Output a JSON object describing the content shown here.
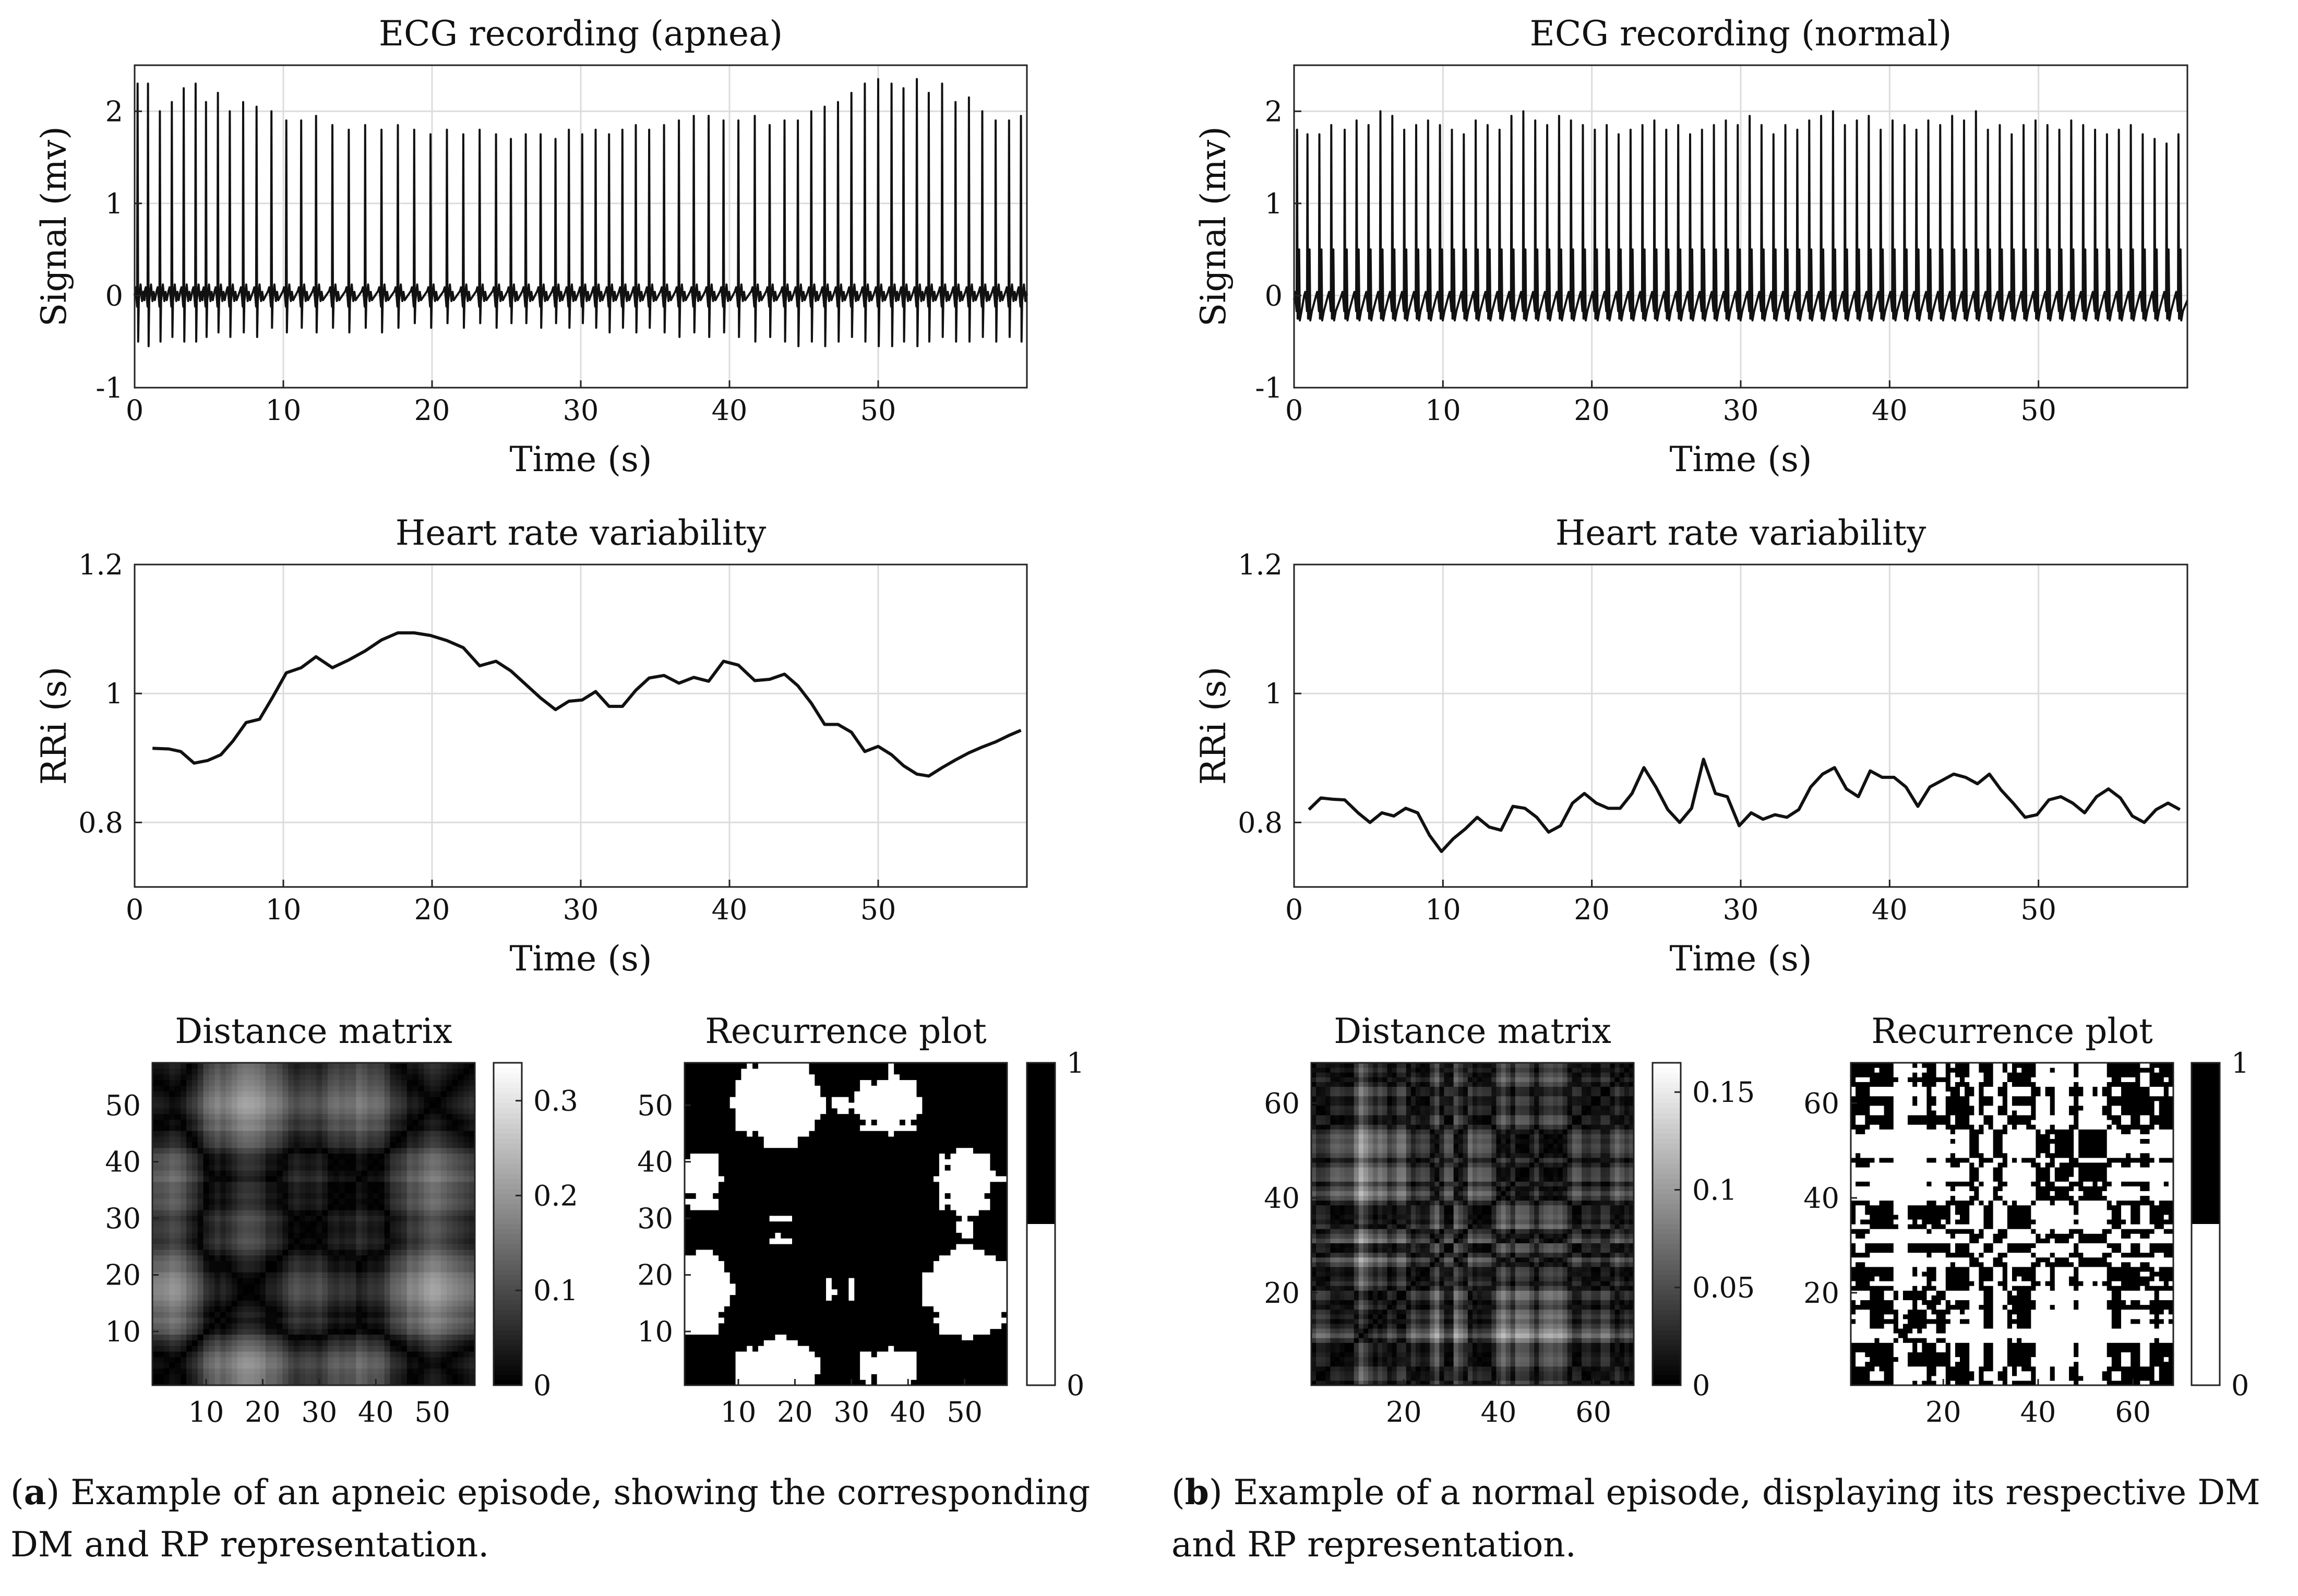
{
  "panel_a": {
    "label": "a",
    "caption": "Example of an apneic episode, showing the corresponding DM and RP representation."
  },
  "panel_b": {
    "label": "b",
    "caption": "Example of a normal episode, displaying its respective DM and RP representation."
  },
  "chart_data": [
    {
      "id": "ecg_apnea",
      "type": "line",
      "title": "ECG recording (apnea)",
      "xlabel": "Time (s)",
      "ylabel": "Signal (mv)",
      "xlim": [
        0,
        60
      ],
      "ylim": [
        -1,
        2.5
      ],
      "xticks": [
        0,
        10,
        20,
        30,
        40,
        50
      ],
      "yticks": [
        -1,
        0,
        1,
        2
      ],
      "grid": true,
      "beat_times": [
        0.2,
        0.9,
        1.7,
        2.5,
        3.3,
        4.1,
        4.8,
        5.6,
        6.4,
        7.3,
        8.2,
        9.2,
        10.2,
        11.2,
        12.2,
        13.3,
        14.4,
        15.5,
        16.6,
        17.7,
        18.8,
        19.9,
        21.0,
        22.1,
        23.2,
        24.3,
        25.3,
        26.3,
        27.3,
        28.3,
        29.2,
        30.1,
        31.0,
        31.9,
        32.8,
        33.7,
        34.6,
        35.6,
        36.6,
        37.6,
        38.6,
        39.6,
        40.6,
        41.7,
        42.7,
        43.7,
        44.6,
        45.5,
        46.4,
        47.3,
        48.2,
        49.1,
        50.0,
        50.9,
        51.7,
        52.6,
        53.4,
        54.3,
        55.2,
        56.1,
        57.0,
        57.9,
        58.8,
        59.6
      ],
      "r_peaks": [
        2.3,
        2.3,
        2.0,
        2.1,
        2.25,
        2.3,
        2.1,
        2.2,
        2.0,
        2.1,
        2.05,
        2.0,
        1.9,
        1.9,
        1.95,
        1.85,
        1.8,
        1.85,
        1.8,
        1.85,
        1.8,
        1.75,
        1.8,
        1.75,
        1.8,
        1.75,
        1.7,
        1.75,
        1.75,
        1.7,
        1.8,
        1.75,
        1.8,
        1.75,
        1.8,
        1.85,
        1.8,
        1.85,
        1.9,
        1.95,
        1.95,
        1.9,
        1.9,
        1.95,
        1.85,
        1.9,
        1.9,
        2.0,
        2.05,
        2.1,
        2.2,
        2.3,
        2.35,
        2.3,
        2.25,
        2.35,
        2.2,
        2.3,
        2.1,
        2.15,
        2.0,
        1.9,
        1.9,
        1.95
      ],
      "s_troughs": [
        -0.5,
        -0.55,
        -0.5,
        -0.45,
        -0.5,
        -0.5,
        -0.45,
        -0.4,
        -0.45,
        -0.4,
        -0.45,
        -0.35,
        -0.4,
        -0.35,
        -0.4,
        -0.35,
        -0.4,
        -0.35,
        -0.4,
        -0.35,
        -0.3,
        -0.35,
        -0.3,
        -0.35,
        -0.3,
        -0.35,
        -0.3,
        -0.3,
        -0.35,
        -0.3,
        -0.35,
        -0.3,
        -0.35,
        -0.4,
        -0.35,
        -0.4,
        -0.35,
        -0.4,
        -0.45,
        -0.4,
        -0.45,
        -0.4,
        -0.45,
        -0.5,
        -0.45,
        -0.5,
        -0.55,
        -0.5,
        -0.55,
        -0.5,
        -0.45,
        -0.5,
        -0.55,
        -0.55,
        -0.5,
        -0.55,
        -0.5,
        -0.45,
        -0.5,
        -0.5,
        -0.45,
        -0.5,
        -0.45,
        -0.5
      ],
      "baseline": 0.0
    },
    {
      "id": "ecg_normal",
      "type": "line",
      "title": "ECG recording (normal)",
      "xlabel": "Time (s)",
      "ylabel": "Signal (mv)",
      "xlim": [
        0,
        60
      ],
      "ylim": [
        -1,
        2.5
      ],
      "xticks": [
        0,
        10,
        20,
        30,
        40,
        50
      ],
      "yticks": [
        -1,
        0,
        1,
        2
      ],
      "grid": true,
      "beat_times": [
        0.2,
        0.9,
        1.7,
        2.5,
        3.4,
        4.2,
        5.0,
        5.8,
        6.6,
        7.4,
        8.2,
        9.0,
        9.8,
        10.6,
        11.4,
        12.2,
        13.0,
        13.8,
        14.6,
        15.4,
        16.2,
        17.0,
        17.8,
        18.6,
        19.4,
        20.2,
        21.0,
        21.8,
        22.6,
        23.4,
        24.2,
        25.0,
        25.8,
        26.6,
        27.4,
        28.2,
        29.0,
        29.8,
        30.6,
        31.4,
        32.2,
        33.0,
        33.8,
        34.6,
        35.4,
        36.2,
        37.0,
        37.8,
        38.6,
        39.4,
        40.2,
        41.0,
        41.8,
        42.6,
        43.4,
        44.2,
        45.0,
        45.8,
        46.6,
        47.4,
        48.2,
        49.0,
        49.8,
        50.6,
        51.4,
        52.2,
        53.0,
        53.8,
        54.6,
        55.4,
        56.2,
        57.0,
        57.8,
        58.6,
        59.4
      ],
      "r_peaks": [
        1.8,
        1.75,
        1.75,
        1.85,
        1.8,
        1.9,
        1.85,
        2.0,
        1.95,
        1.8,
        1.85,
        1.9,
        1.85,
        1.8,
        1.75,
        1.9,
        1.85,
        1.8,
        1.95,
        2.0,
        1.9,
        1.85,
        1.95,
        1.9,
        1.85,
        1.8,
        1.85,
        1.75,
        1.8,
        1.85,
        1.9,
        1.8,
        1.85,
        1.75,
        1.8,
        1.85,
        1.9,
        1.85,
        1.95,
        1.85,
        1.75,
        1.85,
        1.8,
        1.9,
        1.95,
        2.0,
        1.85,
        1.9,
        1.95,
        1.8,
        1.9,
        1.85,
        1.8,
        1.9,
        1.85,
        1.95,
        1.9,
        2.0,
        1.8,
        1.85,
        1.75,
        1.85,
        1.9,
        1.85,
        1.8,
        1.9,
        1.85,
        1.8,
        1.75,
        1.8,
        1.85,
        1.75,
        1.7,
        1.65,
        1.75
      ],
      "secondary_peak": 0.5,
      "s_troughs": -0.25,
      "baseline": -0.05
    },
    {
      "id": "hrv_apnea",
      "type": "line",
      "title": "Heart rate variability",
      "xlabel": "Time (s)",
      "ylabel": "RRi (s)",
      "xlim": [
        0,
        60
      ],
      "ylim": [
        0.7,
        1.2
      ],
      "xticks": [
        0,
        10,
        20,
        30,
        40,
        50
      ],
      "yticks": [
        0.8,
        1,
        1.2
      ],
      "grid": true,
      "x": [
        1.2,
        2.3,
        3.1,
        4.0,
        4.9,
        5.8,
        6.6,
        7.5,
        8.4,
        9.3,
        10.2,
        11.2,
        12.2,
        13.3,
        14.4,
        15.5,
        16.6,
        17.7,
        18.8,
        19.9,
        21.0,
        22.1,
        23.2,
        24.3,
        25.3,
        26.3,
        27.3,
        28.3,
        29.2,
        30.1,
        31.0,
        31.9,
        32.8,
        33.7,
        34.6,
        35.6,
        36.6,
        37.6,
        38.6,
        39.6,
        40.6,
        41.7,
        42.7,
        43.7,
        44.6,
        45.5,
        46.4,
        47.3,
        48.2,
        49.1,
        50.0,
        50.9,
        51.7,
        52.6,
        53.4,
        54.3,
        55.2,
        56.1,
        57.0,
        57.9,
        58.8,
        59.6
      ],
      "y": [
        0.915,
        0.914,
        0.91,
        0.892,
        0.896,
        0.905,
        0.926,
        0.955,
        0.96,
        0.995,
        1.032,
        1.04,
        1.057,
        1.04,
        1.052,
        1.066,
        1.083,
        1.094,
        1.094,
        1.09,
        1.082,
        1.071,
        1.043,
        1.05,
        1.035,
        1.014,
        0.993,
        0.975,
        0.988,
        0.99,
        1.003,
        0.98,
        0.98,
        1.005,
        1.024,
        1.028,
        1.016,
        1.025,
        1.019,
        1.05,
        1.044,
        1.02,
        1.022,
        1.03,
        1.012,
        0.985,
        0.952,
        0.952,
        0.94,
        0.91,
        0.918,
        0.905,
        0.888,
        0.875,
        0.872,
        0.885,
        0.897,
        0.908,
        0.917,
        0.925,
        0.935,
        0.943
      ]
    },
    {
      "id": "hrv_normal",
      "type": "line",
      "title": "Heart rate variability",
      "xlabel": "Time (s)",
      "ylabel": "RRi (s)",
      "xlim": [
        0,
        60
      ],
      "ylim": [
        0.7,
        1.2
      ],
      "xticks": [
        0,
        10,
        20,
        30,
        40,
        50
      ],
      "yticks": [
        0.8,
        1,
        1.2
      ],
      "grid": true,
      "x": [
        1.0,
        1.8,
        2.6,
        3.4,
        4.3,
        5.1,
        5.9,
        6.7,
        7.5,
        8.3,
        9.1,
        9.9,
        10.7,
        11.5,
        12.3,
        13.1,
        13.9,
        14.7,
        15.5,
        16.3,
        17.1,
        17.9,
        18.7,
        19.5,
        20.3,
        21.1,
        21.9,
        22.7,
        23.5,
        24.3,
        25.1,
        25.9,
        26.7,
        27.5,
        28.3,
        29.1,
        29.9,
        30.7,
        31.5,
        32.3,
        33.1,
        33.9,
        34.7,
        35.5,
        36.3,
        37.1,
        37.9,
        38.7,
        39.5,
        40.3,
        41.1,
        41.9,
        42.7,
        43.5,
        44.3,
        45.1,
        45.9,
        46.7,
        47.5,
        48.3,
        49.1,
        49.9,
        50.7,
        51.5,
        52.3,
        53.1,
        53.9,
        54.7,
        55.5,
        56.3,
        57.1,
        57.9,
        58.7,
        59.5
      ],
      "y": [
        0.82,
        0.838,
        0.836,
        0.835,
        0.815,
        0.8,
        0.815,
        0.81,
        0.822,
        0.815,
        0.78,
        0.755,
        0.775,
        0.79,
        0.808,
        0.793,
        0.788,
        0.825,
        0.822,
        0.808,
        0.785,
        0.795,
        0.83,
        0.845,
        0.83,
        0.822,
        0.822,
        0.845,
        0.885,
        0.855,
        0.82,
        0.8,
        0.822,
        0.898,
        0.845,
        0.84,
        0.795,
        0.815,
        0.805,
        0.812,
        0.808,
        0.82,
        0.855,
        0.875,
        0.885,
        0.852,
        0.84,
        0.88,
        0.87,
        0.87,
        0.855,
        0.825,
        0.855,
        0.865,
        0.875,
        0.87,
        0.86,
        0.875,
        0.85,
        0.83,
        0.808,
        0.812,
        0.835,
        0.84,
        0.83,
        0.815,
        0.84,
        0.852,
        0.838,
        0.81,
        0.8,
        0.82,
        0.83,
        0.82
      ]
    },
    {
      "id": "dm_apnea",
      "type": "heatmap",
      "title": "Distance matrix",
      "size": 57,
      "xticks": [
        10,
        20,
        30,
        40,
        50
      ],
      "yticks": [
        10,
        20,
        30,
        40,
        50
      ],
      "colorbar": {
        "range": [
          0,
          0.34
        ],
        "ticks": [
          0,
          0.1,
          0.2,
          0.3
        ],
        "tick_labels": [
          "0",
          "0.1",
          "0.2",
          "0.3"
        ],
        "colormap": "gray"
      },
      "hrv_series": "hrv_apnea"
    },
    {
      "id": "rp_apnea",
      "type": "heatmap",
      "title": "Recurrence plot",
      "size": 57,
      "xticks": [
        10,
        20,
        30,
        40,
        50
      ],
      "yticks": [
        10,
        20,
        30,
        40,
        50
      ],
      "threshold": 0.105,
      "colorbar": {
        "range": [
          0,
          1
        ],
        "ticks": [
          0,
          1
        ],
        "tick_labels": [
          "0",
          "1"
        ],
        "colormap": "binary"
      },
      "hrv_series": "hrv_apnea"
    },
    {
      "id": "dm_normal",
      "type": "heatmap",
      "title": "Distance matrix",
      "size": 68,
      "xticks": [
        20,
        40,
        60
      ],
      "yticks": [
        20,
        40,
        60
      ],
      "colorbar": {
        "range": [
          0,
          0.165
        ],
        "ticks": [
          0,
          0.05,
          0.1,
          0.15
        ],
        "tick_labels": [
          "0",
          "0.05",
          "0.1",
          "0.15"
        ],
        "colormap": "gray"
      },
      "hrv_series": "hrv_normal"
    },
    {
      "id": "rp_normal",
      "type": "heatmap",
      "title": "Recurrence plot",
      "size": 68,
      "xticks": [
        20,
        40,
        60
      ],
      "yticks": [
        20,
        40,
        60
      ],
      "threshold": 0.022,
      "colorbar": {
        "range": [
          0,
          1
        ],
        "ticks": [
          0,
          1
        ],
        "tick_labels": [
          "0",
          "1"
        ],
        "colormap": "binary"
      },
      "hrv_series": "hrv_normal"
    }
  ]
}
